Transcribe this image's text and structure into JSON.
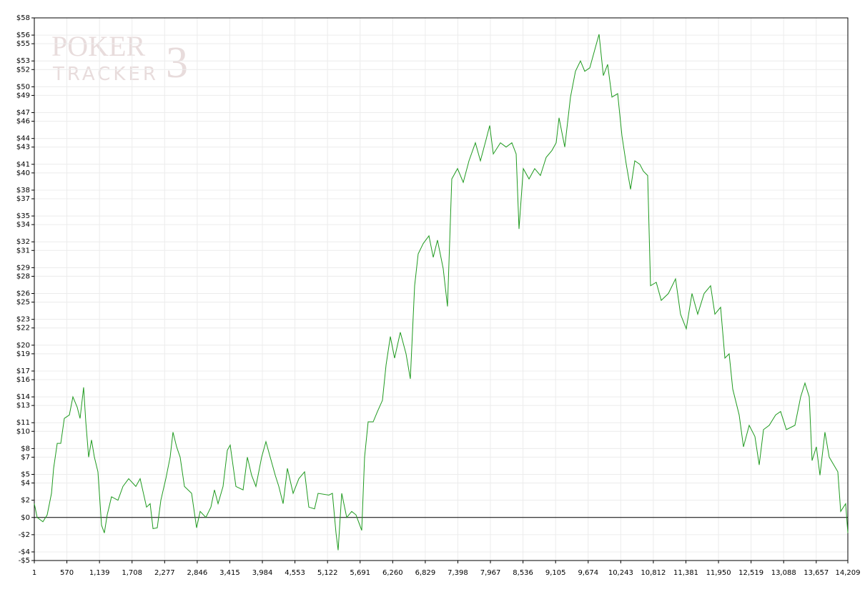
{
  "watermark": {
    "brand": "POKER",
    "product": "TRACKER",
    "version": "3"
  },
  "chart_data": {
    "type": "line",
    "color": "#1f9a1f",
    "grid": true,
    "xlim": [
      1,
      14209
    ],
    "xticks": [
      1,
      570,
      {
        "value": 1139,
        "label": "1,139"
      },
      {
        "value": 1708,
        "label": "1,708"
      },
      {
        "value": 2277,
        "label": "2,277"
      },
      {
        "value": 2846,
        "label": "2,846"
      },
      {
        "value": 3415,
        "label": "3,415"
      },
      {
        "value": 3984,
        "label": "3,984"
      },
      {
        "value": 4553,
        "label": "4,553"
      },
      {
        "value": 5122,
        "label": "5,122"
      },
      {
        "value": 5691,
        "label": "5,691"
      },
      {
        "value": 6260,
        "label": "6,260"
      },
      {
        "value": 6829,
        "label": "6,829"
      },
      {
        "value": 7398,
        "label": "7,398"
      },
      {
        "value": 7967,
        "label": "7,967"
      },
      {
        "value": 8536,
        "label": "8,536"
      },
      {
        "value": 9105,
        "label": "9,105"
      },
      {
        "value": 9674,
        "label": "9,674"
      },
      {
        "value": 10243,
        "label": "10,243"
      },
      {
        "value": 10812,
        "label": "10,812"
      },
      {
        "value": 11381,
        "label": "11,381"
      },
      {
        "value": 11950,
        "label": "11,950"
      },
      {
        "value": 12519,
        "label": "12,519"
      },
      {
        "value": 13088,
        "label": "13,088"
      },
      {
        "value": 13657,
        "label": "13,657"
      },
      {
        "value": 14209,
        "label": "14,209"
      }
    ],
    "ylim": [
      -5,
      58
    ],
    "yticks": [
      {
        "value": -5,
        "label": "-$5"
      },
      {
        "value": -4,
        "label": "-$4"
      },
      {
        "value": -2,
        "label": "-$2"
      },
      {
        "value": 0,
        "label": "$0"
      },
      {
        "value": 2,
        "label": "$2"
      },
      {
        "value": 4,
        "label": "$4"
      },
      {
        "value": 5,
        "label": "$5"
      },
      {
        "value": 7,
        "label": "$7"
      },
      {
        "value": 8,
        "label": "$8"
      },
      {
        "value": 10,
        "label": "$10"
      },
      {
        "value": 11,
        "label": "$11"
      },
      {
        "value": 13,
        "label": "$13"
      },
      {
        "value": 14,
        "label": "$14"
      },
      {
        "value": 16,
        "label": "$16"
      },
      {
        "value": 17,
        "label": "$17"
      },
      {
        "value": 19,
        "label": "$19"
      },
      {
        "value": 20,
        "label": "$20"
      },
      {
        "value": 22,
        "label": "$22"
      },
      {
        "value": 23,
        "label": "$23"
      },
      {
        "value": 25,
        "label": "$25"
      },
      {
        "value": 26,
        "label": "$26"
      },
      {
        "value": 28,
        "label": "$28"
      },
      {
        "value": 29,
        "label": "$29"
      },
      {
        "value": 31,
        "label": "$31"
      },
      {
        "value": 32,
        "label": "$32"
      },
      {
        "value": 34,
        "label": "$34"
      },
      {
        "value": 35,
        "label": "$35"
      },
      {
        "value": 37,
        "label": "$37"
      },
      {
        "value": 38,
        "label": "$38"
      },
      {
        "value": 40,
        "label": "$40"
      },
      {
        "value": 41,
        "label": "$41"
      },
      {
        "value": 43,
        "label": "$43"
      },
      {
        "value": 44,
        "label": "$44"
      },
      {
        "value": 46,
        "label": "$46"
      },
      {
        "value": 47,
        "label": "$47"
      },
      {
        "value": 49,
        "label": "$49"
      },
      {
        "value": 50,
        "label": "$50"
      },
      {
        "value": 52,
        "label": "$52"
      },
      {
        "value": 53,
        "label": "$53"
      },
      {
        "value": 55,
        "label": "$55"
      },
      {
        "value": 56,
        "label": "$56"
      },
      {
        "value": 58,
        "label": "$58"
      }
    ],
    "x": [
      1,
      51,
      151,
      226,
      301,
      338,
      401,
      463,
      525,
      613,
      675,
      750,
      800,
      862,
      900,
      950,
      1000,
      1050,
      1112,
      1175,
      1224,
      1274,
      1349,
      1462,
      1549,
      1649,
      1774,
      1849,
      1961,
      2024,
      2074,
      2148,
      2211,
      2298,
      2373,
      2423,
      2486,
      2548,
      2623,
      2748,
      2835,
      2897,
      2997,
      3085,
      3147,
      3210,
      3297,
      3372,
      3422,
      3522,
      3647,
      3722,
      3796,
      3871,
      3971,
      4046,
      4121,
      4209,
      4271,
      4346,
      4421,
      4521,
      4621,
      4721,
      4795,
      4895,
      4957,
      5145,
      5207,
      5270,
      5307,
      5370,
      5457,
      5544,
      5619,
      5719,
      5769,
      5831,
      5919,
      5994,
      6081,
      6144,
      6219,
      6293,
      6393,
      6493,
      6568,
      6643,
      6705,
      6793,
      6893,
      6968,
      7042,
      7142,
      7217,
      7292,
      7392,
      7492,
      7592,
      7704,
      7792,
      7892,
      7954,
      8017,
      8142,
      8241,
      8341,
      8416,
      8466,
      8541,
      8641,
      8740,
      8840,
      8940,
      9040,
      9115,
      9165,
      9265,
      9365,
      9452,
      9539,
      9614,
      9702,
      9789,
      9864,
      9939,
      10014,
      10089,
      10189,
      10264,
      10339,
      10414,
      10488,
      10576,
      10638,
      10713,
      10763,
      10863,
      10950,
      11075,
      11200,
      11287,
      11387,
      11487,
      11587,
      11699,
      11812,
      11887,
      11987,
      12062,
      12136,
      12199,
      12311,
      12386,
      12486,
      12586,
      12661,
      12736,
      12836,
      12948,
      13035,
      13135,
      13285,
      13385,
      13460,
      13535,
      13584,
      13659,
      13722,
      13809,
      13884,
      14034,
      14084,
      14171,
      14209
    ],
    "values": [
      1.6,
      0,
      -0.5,
      0.3,
      2.8,
      5.7,
      8.6,
      8.6,
      11.5,
      11.9,
      14,
      12.8,
      11.5,
      15.1,
      11.1,
      7,
      9,
      7,
      5.3,
      -0.9,
      -1.8,
      0.3,
      2.4,
      2,
      3.6,
      4.5,
      3.6,
      4.5,
      1.2,
      1.6,
      -1.3,
      -1.2,
      2,
      4.5,
      7,
      9.9,
      8.2,
      7,
      3.6,
      2.8,
      -1.2,
      0.7,
      0,
      1.2,
      3.2,
      1.6,
      3.6,
      7.8,
      8.4,
      3.6,
      3.2,
      7,
      4.9,
      3.6,
      7,
      8.8,
      7,
      4.9,
      3.6,
      1.6,
      5.7,
      2.8,
      4.5,
      5.3,
      1.2,
      1,
      2.8,
      2.6,
      2.8,
      -1.8,
      -3.8,
      2.8,
      0,
      0.7,
      0.3,
      -1.5,
      7,
      11.1,
      11.1,
      12.3,
      13.6,
      17.7,
      21,
      18.5,
      21.5,
      19,
      16.1,
      26.9,
      30.6,
      31.8,
      32.7,
      30.2,
      32.2,
      28.9,
      24.5,
      39.3,
      40.5,
      38.9,
      41.4,
      43.5,
      41.4,
      43.9,
      45.5,
      42.2,
      43.5,
      43,
      43.5,
      42.2,
      33.5,
      40.5,
      39.3,
      40.5,
      39.7,
      41.8,
      42.6,
      43.5,
      46.4,
      43,
      48.8,
      51.8,
      53,
      51.8,
      52.2,
      54.3,
      56.1,
      51.3,
      52.6,
      48.8,
      49.2,
      44.3,
      41,
      38.1,
      41.4,
      41,
      40.2,
      39.7,
      26.9,
      27.3,
      25.2,
      26,
      27.7,
      23.6,
      21.9,
      26,
      23.6,
      26,
      26.9,
      23.6,
      24.4,
      18.5,
      19,
      14.9,
      11.9,
      8.2,
      10.7,
      9.4,
      6.1,
      10.2,
      10.7,
      11.9,
      12.3,
      10.2,
      10.7,
      14,
      15.6,
      14,
      6.6,
      8.2,
      4.9,
      9.9,
      7,
      5.3,
      0.7,
      1.6,
      -1.8
    ]
  }
}
